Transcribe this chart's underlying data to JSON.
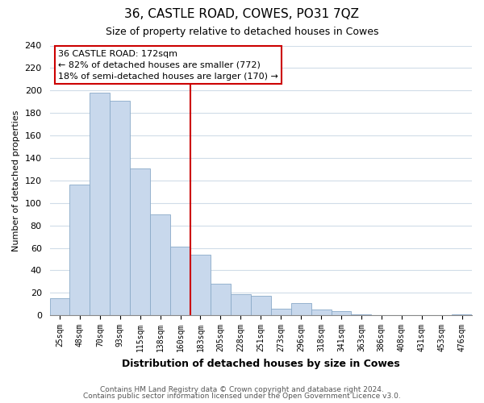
{
  "title": "36, CASTLE ROAD, COWES, PO31 7QZ",
  "subtitle": "Size of property relative to detached houses in Cowes",
  "xlabel": "Distribution of detached houses by size in Cowes",
  "ylabel": "Number of detached properties",
  "bar_color": "#c8d8ec",
  "bar_edge_color": "#8aaac8",
  "categories": [
    "25sqm",
    "48sqm",
    "70sqm",
    "93sqm",
    "115sqm",
    "138sqm",
    "160sqm",
    "183sqm",
    "205sqm",
    "228sqm",
    "251sqm",
    "273sqm",
    "296sqm",
    "318sqm",
    "341sqm",
    "363sqm",
    "386sqm",
    "408sqm",
    "431sqm",
    "453sqm",
    "476sqm"
  ],
  "values": [
    15,
    116,
    198,
    191,
    131,
    90,
    61,
    54,
    28,
    19,
    17,
    6,
    11,
    5,
    4,
    1,
    0,
    0,
    0,
    0,
    1
  ],
  "red_line_index": 6.5,
  "annotation_text_line1": "36 CASTLE ROAD: 172sqm",
  "annotation_text_line2": "← 82% of detached houses are smaller (772)",
  "annotation_text_line3": "18% of semi-detached houses are larger (170) →",
  "annotation_box_color": "#ffffff",
  "annotation_box_edge_color": "#cc0000",
  "red_line_color": "#cc0000",
  "ylim": [
    0,
    240
  ],
  "yticks": [
    0,
    20,
    40,
    60,
    80,
    100,
    120,
    140,
    160,
    180,
    200,
    220,
    240
  ],
  "footer1": "Contains HM Land Registry data © Crown copyright and database right 2024.",
  "footer2": "Contains public sector information licensed under the Open Government Licence v3.0.",
  "bg_color": "#ffffff",
  "grid_color": "#d0dce8"
}
